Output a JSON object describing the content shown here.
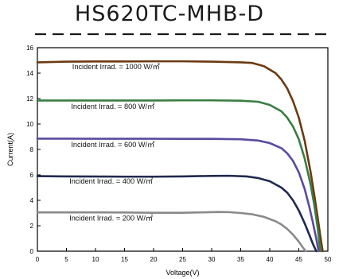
{
  "title": "HS620TC-MHB-D",
  "chart_data": {
    "type": "line",
    "title": "HS620TC-MHB-D",
    "xlabel": "Voltage(V)",
    "ylabel": "Current(A)",
    "xlim": [
      0,
      50
    ],
    "ylim": [
      0,
      16
    ],
    "xticks": [
      0,
      5,
      10,
      15,
      20,
      25,
      30,
      35,
      40,
      45,
      50
    ],
    "yticks": [
      0,
      2,
      4,
      6,
      8,
      10,
      12,
      14,
      16
    ],
    "grid": false,
    "series": [
      {
        "name": "Incident Irrad. = 1000 W/㎡",
        "color": "#6b3a12",
        "x": [
          0,
          5,
          10,
          15,
          20,
          25,
          30,
          35,
          37,
          39,
          41,
          42,
          43,
          44,
          45,
          46,
          47,
          47.6,
          48.2,
          48.7,
          49.1
        ],
        "y": [
          14.85,
          14.9,
          14.92,
          14.92,
          14.93,
          14.93,
          14.9,
          14.85,
          14.8,
          14.55,
          14.0,
          13.5,
          12.8,
          11.8,
          10.5,
          8.7,
          6.3,
          4.6,
          2.8,
          1.2,
          0
        ]
      },
      {
        "name": "Incident Irrad. = 800 W/㎡",
        "color": "#3a7d44",
        "x": [
          0,
          5,
          10,
          15,
          20,
          25,
          30,
          35,
          38,
          40,
          42,
          43,
          44,
          45,
          46,
          47,
          47.6,
          48.2,
          48.7
        ],
        "y": [
          11.85,
          11.85,
          11.85,
          11.85,
          11.85,
          11.86,
          11.86,
          11.83,
          11.75,
          11.5,
          11.0,
          10.5,
          9.8,
          8.8,
          7.3,
          5.3,
          3.8,
          2.0,
          0
        ]
      },
      {
        "name": "Incident Irrad. = 600 W/㎡",
        "color": "#5b4a9e",
        "x": [
          0,
          5,
          10,
          15,
          20,
          25,
          30,
          35,
          38,
          40,
          42,
          43,
          44,
          45,
          46,
          46.8,
          47.4,
          48.0,
          48.4
        ],
        "y": [
          8.85,
          8.85,
          8.84,
          8.84,
          8.84,
          8.83,
          8.83,
          8.8,
          8.7,
          8.5,
          8.1,
          7.7,
          7.1,
          6.2,
          4.9,
          3.5,
          2.3,
          1.0,
          0
        ]
      },
      {
        "name": "Incident Irrad. = 400 W/㎡",
        "color": "#1f2a4e",
        "x": [
          0,
          5,
          10,
          15,
          20,
          25,
          30,
          33,
          36,
          38,
          40,
          42,
          43,
          44,
          45,
          46,
          46.8,
          47.4,
          48.0
        ],
        "y": [
          5.9,
          5.88,
          5.87,
          5.86,
          5.86,
          5.88,
          5.92,
          5.93,
          5.88,
          5.75,
          5.5,
          5.0,
          4.6,
          4.0,
          3.2,
          2.2,
          1.3,
          0.6,
          0
        ]
      },
      {
        "name": "Incident Irrad. = 200 W/㎡",
        "color": "#8a8a8a",
        "x": [
          0,
          5,
          10,
          15,
          20,
          25,
          28,
          31,
          33,
          35,
          37,
          39,
          41,
          42,
          43,
          44,
          45,
          45.6,
          46.2
        ],
        "y": [
          3.05,
          3.05,
          3.05,
          3.04,
          3.02,
          3.02,
          3.05,
          3.08,
          3.07,
          3.0,
          2.9,
          2.7,
          2.35,
          2.1,
          1.75,
          1.3,
          0.75,
          0.35,
          0
        ]
      }
    ],
    "annotations": [
      {
        "text": "Incident Irrad. = 1000 W/㎡",
        "x": 6.0,
        "y": 14.3
      },
      {
        "text": "Incident Irrad. = 800 W/㎡",
        "x": 5.8,
        "y": 11.2
      },
      {
        "text": "Incident Irrad. = 600 W/㎡",
        "x": 5.8,
        "y": 8.2
      },
      {
        "text": "Incident Irrad. = 400 W/㎡",
        "x": 5.5,
        "y": 5.3
      },
      {
        "text": "Incident Irrad. = 200 W/㎡",
        "x": 5.5,
        "y": 2.4
      }
    ]
  }
}
